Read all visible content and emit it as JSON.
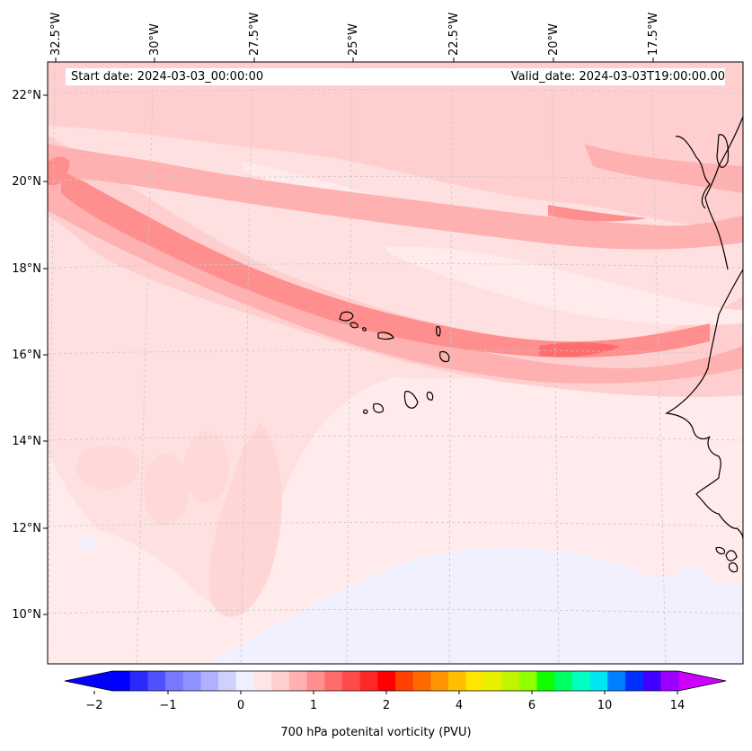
{
  "header": {
    "start_date": "Start date: 2024-03-03_00:00:00",
    "valid_date": "Valid_date: 2024-03-03T19:00:00.00"
  },
  "map": {
    "longitude_labels": [
      "32.5°W",
      "30°W",
      "27.5°W",
      "25°W",
      "22.5°W",
      "20°W",
      "17.5°W"
    ],
    "latitude_labels": [
      "22°N",
      "20°N",
      "18°N",
      "16°N",
      "14°N",
      "12°N",
      "10°N"
    ],
    "extent": {
      "lon_min": -32.5,
      "lon_max": -15.3,
      "lat_min": 9.0,
      "lat_max": 22.8
    },
    "colors": {
      "coastline": "#000000",
      "gridline": "#c8c8c8",
      "background_field": "#ffebeb"
    }
  },
  "colorbar": {
    "label": "700 hPa potenital vorticity (PVU)",
    "tick_labels": [
      "−2",
      "−1",
      "0",
      "1",
      "2",
      "4",
      "6",
      "10",
      "14"
    ],
    "colors": [
      "#0000ff",
      "#2a2aff",
      "#5050ff",
      "#7878ff",
      "#9090ff",
      "#b0b0ff",
      "#d0d0ff",
      "#f0f0ff",
      "#ffe6e6",
      "#ffcfcf",
      "#ffb0b0",
      "#ff8e8e",
      "#ff6c6c",
      "#ff4a4a",
      "#ff2828",
      "#ff0000",
      "#ff4000",
      "#ff6a00",
      "#ff9500",
      "#ffbf00",
      "#ffe600",
      "#e6f000",
      "#c0f500",
      "#90ff00",
      "#10ff00",
      "#00ff60",
      "#00ffc0",
      "#00e6f0",
      "#0080ff",
      "#0030ff",
      "#4000ff",
      "#9900ff"
    ],
    "under_color": "#0000ff",
    "over_color": "#cc00ff"
  }
}
